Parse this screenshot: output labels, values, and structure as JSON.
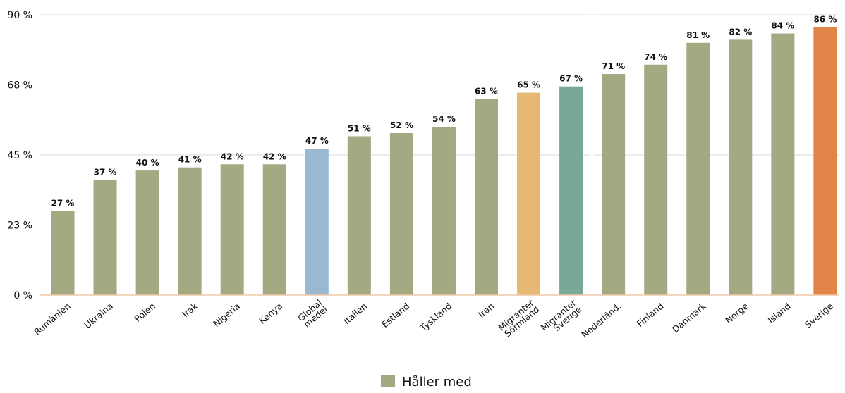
{
  "chart_data": {
    "type": "bar",
    "categories": [
      "Rumänien",
      "Ukraina",
      "Polen",
      "Irak",
      "Nigeria",
      "Kenya",
      "Global\nmedel",
      "Italien",
      "Estland",
      "Tyskland",
      "Iran",
      "Migranter\nSörmland",
      "Migranter\nSverige",
      "Nederländ.",
      "Finland",
      "Danmark",
      "Norge",
      "Island",
      "Sverige"
    ],
    "series": [
      {
        "name": "Håller med",
        "values": [
          27,
          37,
          40,
          41,
          42,
          42,
          47,
          51,
          52,
          54,
          63,
          65,
          67,
          71,
          74,
          81,
          82,
          84,
          86
        ],
        "data_labels": [
          "27 %",
          "37 %",
          "40 %",
          "41 %",
          "42 %",
          "42 %",
          "47 %",
          "51 %",
          "52 %",
          "54 %",
          "63 %",
          "65 %",
          "67 %",
          "71 %",
          "74 %",
          "81 %",
          "82 %",
          "84 %",
          "86 %"
        ],
        "bar_colors": [
          "#a3a980",
          "#a3a980",
          "#a3a980",
          "#a3a980",
          "#a3a980",
          "#a3a980",
          "#9ab9d0",
          "#a3a980",
          "#a3a980",
          "#a3a980",
          "#a3a980",
          "#e6b873",
          "#7aa896",
          "#a3a980",
          "#a3a980",
          "#a3a980",
          "#a3a980",
          "#a3a980",
          "#e08448"
        ]
      }
    ],
    "y_ticks": [
      {
        "value": 0,
        "label": "0 %"
      },
      {
        "value": 22.5,
        "label": "23 %"
      },
      {
        "value": 45,
        "label": "45 %"
      },
      {
        "value": 67.5,
        "label": "68 %"
      },
      {
        "value": 90,
        "label": "90 %"
      }
    ],
    "ylim": [
      0,
      90
    ],
    "grid": true,
    "legend": {
      "placement": "bottom",
      "label": "Håller med",
      "color": "#a3a980"
    },
    "colors": {
      "grid": "#d9d9d9",
      "baseline": "#f0c8a8",
      "separator": "#ffffff"
    }
  }
}
